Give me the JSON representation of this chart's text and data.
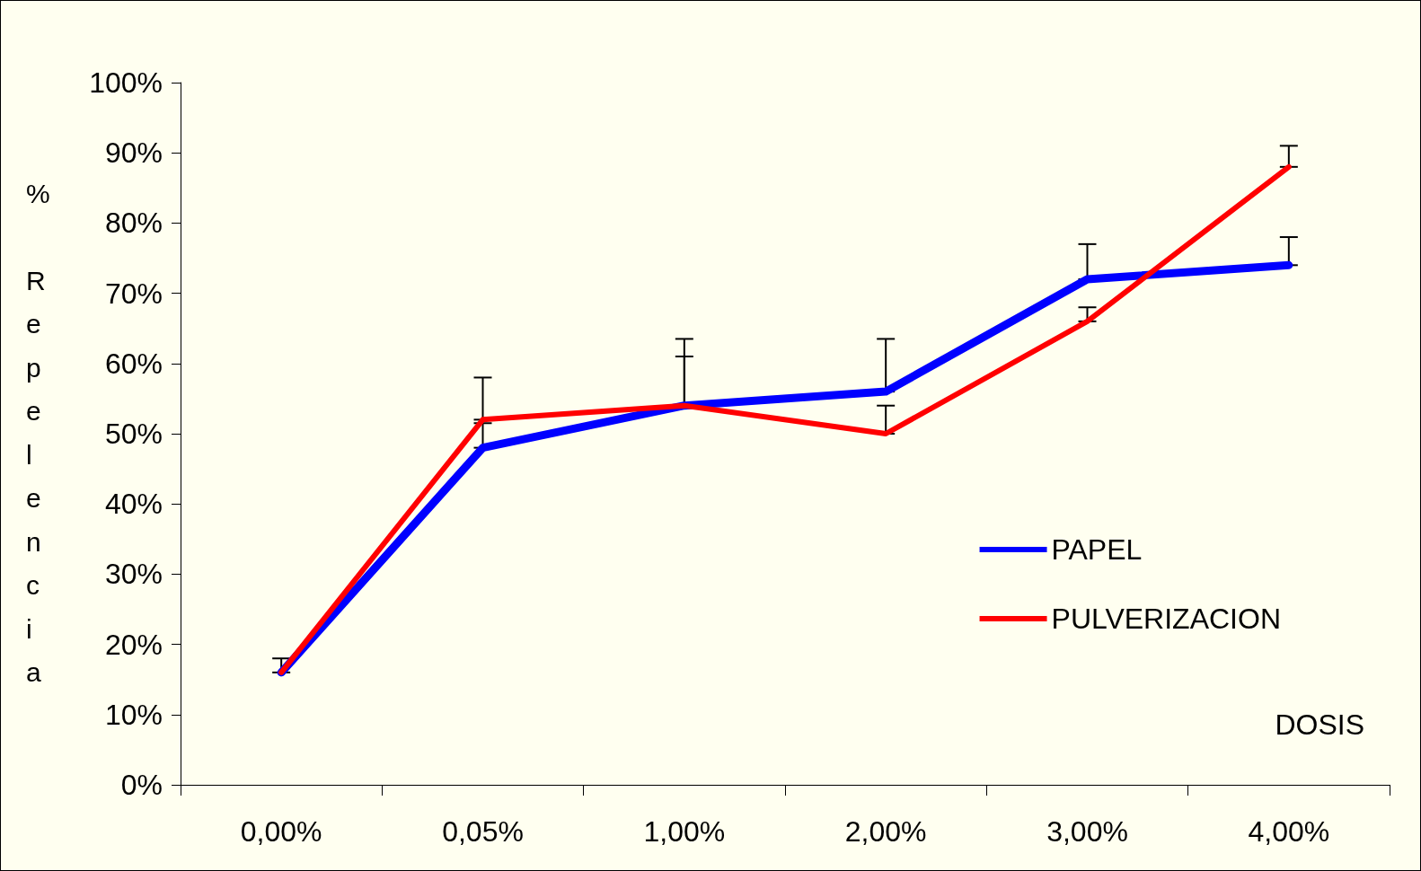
{
  "chart_data": {
    "type": "line",
    "xlabel": "DOSIS",
    "ylabel": "% Repelencia",
    "categories": [
      "0,00%",
      "0,05%",
      "1,00%",
      "2,00%",
      "3,00%",
      "4,00%"
    ],
    "series": [
      {
        "name": "PAPEL",
        "color": "#0000ff",
        "values": [
          16,
          48,
          54,
          56,
          72,
          74
        ],
        "errors": [
          [
            16,
            18
          ],
          [
            48,
            51.5
          ],
          [
            54,
            63.5
          ],
          [
            56,
            63.5
          ],
          [
            72,
            77
          ],
          [
            74,
            78
          ]
        ]
      },
      {
        "name": "PULVERIZACION",
        "color": "#ff0000",
        "values": [
          16,
          52,
          54,
          50,
          66,
          88
        ],
        "errors": [
          null,
          [
            52,
            58
          ],
          [
            54,
            61
          ],
          [
            50,
            54
          ],
          [
            66,
            68
          ],
          [
            88,
            91
          ]
        ]
      }
    ],
    "ylim": [
      0,
      100
    ],
    "yticks": [
      {
        "value": 0,
        "label": "0%"
      },
      {
        "value": 10,
        "label": "10%"
      },
      {
        "value": 20,
        "label": "20%"
      },
      {
        "value": 30,
        "label": "30%"
      },
      {
        "value": 40,
        "label": "40%"
      },
      {
        "value": 50,
        "label": "50%"
      },
      {
        "value": 60,
        "label": "60%"
      },
      {
        "value": 70,
        "label": "70%"
      },
      {
        "value": 80,
        "label": "80%"
      },
      {
        "value": 90,
        "label": "90%"
      },
      {
        "value": 100,
        "label": "100%"
      }
    ],
    "grid": false,
    "legend": "right",
    "marker": "none",
    "line_style": "solid"
  }
}
